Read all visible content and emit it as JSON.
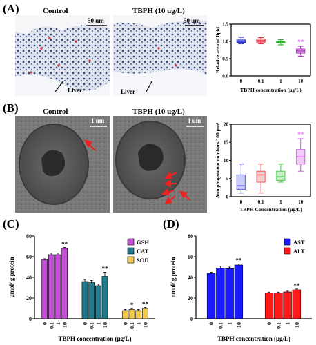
{
  "panels": {
    "A": "(A)",
    "B": "(B)",
    "C": "(C)",
    "D": "(D)"
  },
  "micrographs": {
    "a_control_title": "Control",
    "a_tbph_title": "TBPH (10 ug/L)",
    "a_control_scale": "50 um",
    "a_tbph_scale": "50 um",
    "a_control_arrow_label": "Liver",
    "a_tbph_arrow_label": "Liver",
    "b_control_title": "Control",
    "b_tbph_title": "TBPH (10 ug/L)",
    "b_control_scale": "1 um",
    "b_tbph_scale": "1 um"
  },
  "chart_data": [
    {
      "id": "A-box",
      "type": "box",
      "categories": [
        "0",
        "0.1",
        "1",
        "10"
      ],
      "xlabel": "TBPH concentration (μg/L)",
      "ylabel": "Relative area of lipid",
      "ylim": [
        0.0,
        1.5
      ],
      "yticks": [
        "0.0",
        "0.5",
        "1.0",
        "1.5"
      ],
      "boxes": [
        {
          "min": 0.93,
          "q1": 0.97,
          "median": 1.0,
          "q3": 1.04,
          "max": 1.12,
          "color": "#2b36e0"
        },
        {
          "min": 0.93,
          "q1": 0.98,
          "median": 1.02,
          "q3": 1.07,
          "max": 1.11,
          "color": "#e8303f"
        },
        {
          "min": 0.9,
          "q1": 0.96,
          "median": 0.98,
          "q3": 1.0,
          "max": 1.05,
          "color": "#2db52d"
        },
        {
          "min": 0.57,
          "q1": 0.66,
          "median": 0.72,
          "q3": 0.78,
          "max": 0.86,
          "color": "#c23fd6"
        }
      ],
      "annotations": [
        "",
        "",
        "",
        "**"
      ]
    },
    {
      "id": "B-box",
      "type": "box",
      "categories": [
        "0",
        "0.1",
        "1",
        "10"
      ],
      "xlabel": "TBPH Concentration (μg/L)",
      "ylabel": "Autophagosome numbers/100 μm²",
      "ylim": [
        0,
        20
      ],
      "yticks": [
        "0",
        "5",
        "10",
        "15",
        "20"
      ],
      "boxes": [
        {
          "min": 1,
          "q1": 2,
          "median": 3,
          "q3": 6,
          "max": 9,
          "color": "#6a6ef0"
        },
        {
          "min": 1,
          "q1": 4,
          "median": 6,
          "q3": 7,
          "max": 9,
          "color": "#f06a6a"
        },
        {
          "min": 4,
          "q1": 4.5,
          "median": 5.5,
          "q3": 7,
          "max": 9,
          "color": "#5fd35f"
        },
        {
          "min": 7,
          "q1": 9,
          "median": 11,
          "q3": 13,
          "max": 16,
          "color": "#d56ee8"
        }
      ],
      "annotations": [
        "",
        "",
        "",
        "**"
      ]
    },
    {
      "id": "C-bar",
      "type": "bar",
      "categories": [
        "0",
        "0.1",
        "1",
        "10"
      ],
      "xlabel": "TBPH concentration (μg/L)",
      "ylabel": "μmol/ g protein",
      "ylim": [
        0,
        80
      ],
      "yticks": [
        "0",
        "20",
        "40",
        "60",
        "80"
      ],
      "legend": "top-right",
      "series": [
        {
          "name": "GSH",
          "color": "#c44fd6",
          "values": [
            57,
            62,
            62,
            68
          ],
          "errors": [
            1,
            1.5,
            1.5,
            1
          ],
          "annotations": [
            "",
            "",
            "",
            "**"
          ]
        },
        {
          "name": "CAT",
          "color": "#1f7a8c",
          "values": [
            36,
            35,
            32,
            41
          ],
          "errors": [
            2,
            2,
            1.5,
            4
          ],
          "annotations": [
            "",
            "",
            "",
            "**"
          ]
        },
        {
          "name": "SOD",
          "color": "#f2c94c",
          "values": [
            8,
            9,
            8,
            10
          ],
          "errors": [
            1,
            1,
            1,
            1
          ],
          "annotations": [
            "",
            "*",
            "",
            "**"
          ]
        }
      ]
    },
    {
      "id": "D-bar",
      "type": "bar",
      "categories": [
        "0",
        "0.1",
        "1",
        "10"
      ],
      "xlabel": "TBPH concentration (μg/L)",
      "ylabel": "nmol/ g protein",
      "ylim": [
        0,
        80
      ],
      "yticks": [
        "0",
        "20",
        "40",
        "60",
        "80"
      ],
      "legend": "top-right",
      "series": [
        {
          "name": "AST",
          "color": "#1a1aff",
          "values": [
            44,
            49,
            48.5,
            52
          ],
          "errors": [
            1,
            2,
            1.5,
            1
          ],
          "annotations": [
            "",
            "",
            "",
            "**"
          ]
        },
        {
          "name": "ALT",
          "color": "#ff1a1a",
          "values": [
            25,
            25,
            26,
            28
          ],
          "errors": [
            0.8,
            0.8,
            0.8,
            0.8
          ],
          "annotations": [
            "",
            "",
            "",
            "**"
          ]
        }
      ]
    }
  ]
}
